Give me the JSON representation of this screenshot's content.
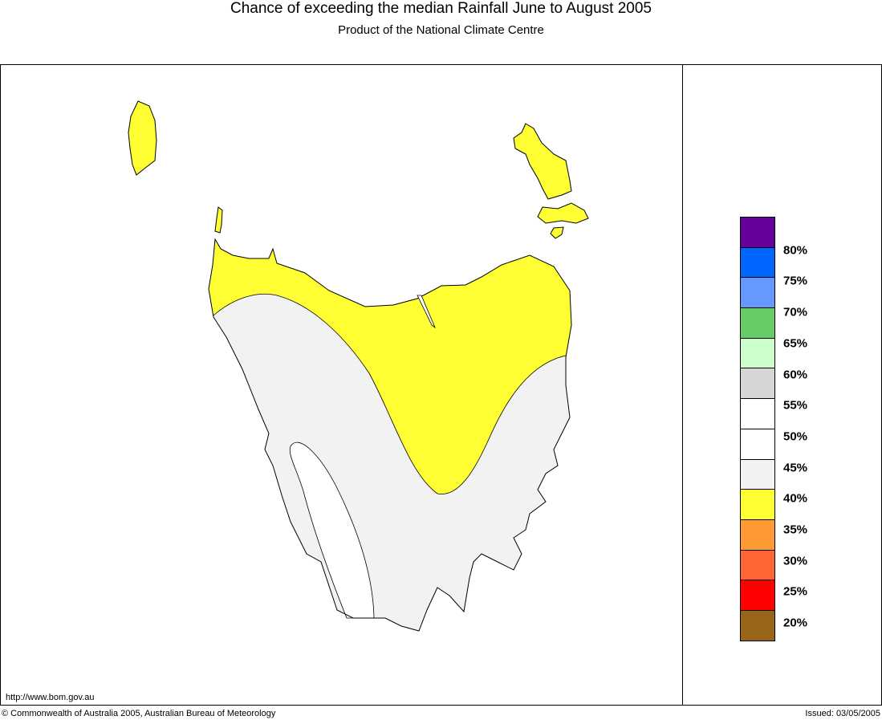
{
  "header": {
    "title": "Chance of exceeding the median Rainfall June to August 2005",
    "subtitle": "Product of the National Climate Centre"
  },
  "legend": {
    "colors": [
      "#660099",
      "#0066ff",
      "#6699ff",
      "#66cc66",
      "#ccffcc",
      "#d6d6d6",
      "#ffffff",
      "#ffffff",
      "#f2f2f2",
      "#ffff33",
      "#ff9933",
      "#ff6633",
      "#ff0000",
      "#996619"
    ],
    "labels": [
      "80%",
      "75%",
      "70%",
      "65%",
      "60%",
      "55%",
      "50%",
      "45%",
      "40%",
      "35%",
      "30%",
      "25%",
      "20%"
    ]
  },
  "map": {
    "region_colors": {
      "below_40": "#ffff33",
      "40_to_45": "#f2f2f2",
      "45_to_50": "#ffffff"
    }
  },
  "footer": {
    "url": "http://www.bom.gov.au",
    "copyright": "© Commonwealth of Australia 2005, Australian Bureau of Meteorology",
    "issued": "Issued: 03/05/2005"
  }
}
